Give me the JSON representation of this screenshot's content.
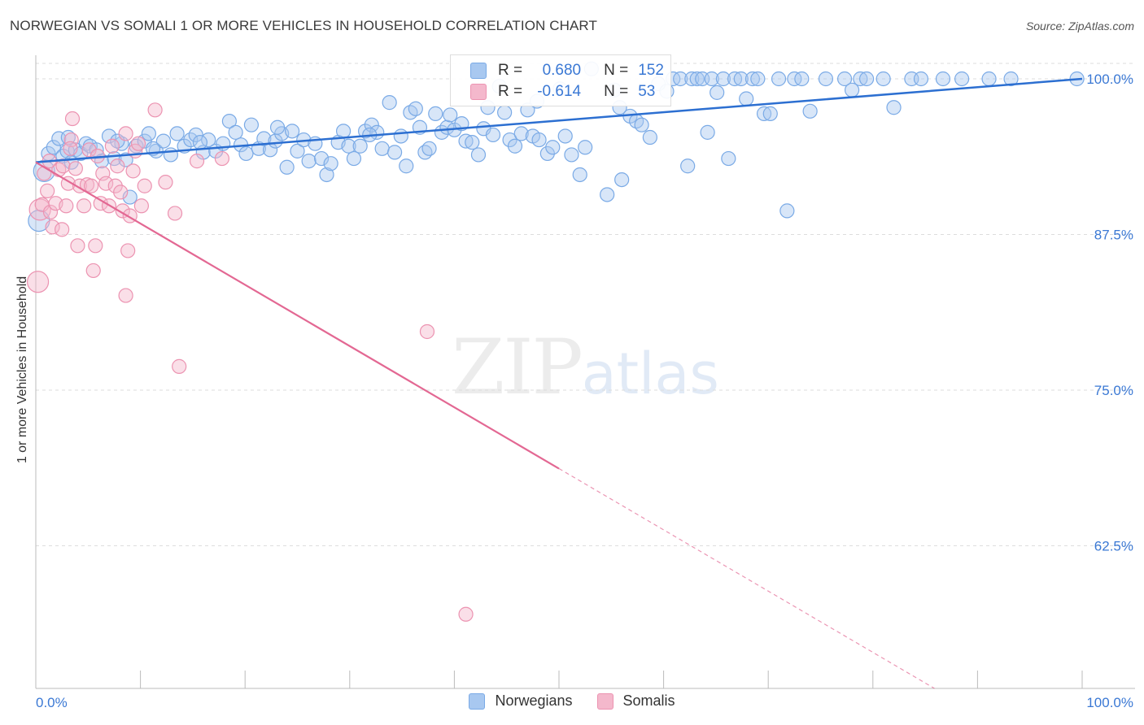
{
  "header": {
    "title": "NORWEGIAN VS SOMALI 1 OR MORE VEHICLES IN HOUSEHOLD CORRELATION CHART",
    "source": "Source: ZipAtlas.com"
  },
  "watermark": {
    "zip": "ZIP",
    "atlas": "atlas"
  },
  "legend_top": {
    "rows": [
      {
        "r_key": "R =",
        "r_val": "0.680",
        "n_key": "N =",
        "n_val": "152",
        "color": "#a8c8f0"
      },
      {
        "r_key": "R =",
        "r_val": "-0.614",
        "n_key": "N =",
        "n_val": "53",
        "color": "#f4b8cc"
      }
    ]
  },
  "legend_bottom": {
    "norwegians": "Norwegians",
    "somalis": "Somalis"
  },
  "colors": {
    "blue_fill": "#a8c8f0",
    "blue_stroke": "#7aaae6",
    "blue_line": "#2c6fd1",
    "pink_fill": "#f4b8cc",
    "pink_stroke": "#ec93b1",
    "pink_line": "#e36893",
    "tick_label": "#3a78d4",
    "grid": "#dddddd"
  },
  "chart_data": {
    "type": "scatter",
    "title": "NORWEGIAN VS SOMALI 1 OR MORE VEHICLES IN HOUSEHOLD CORRELATION CHART",
    "xlabel": "",
    "ylabel": "1 or more Vehicles in Household",
    "xlim": [
      0,
      100
    ],
    "ylim": [
      50.5,
      101.5
    ],
    "x_tick_labels": [
      "0.0%",
      "100.0%"
    ],
    "y_ticks": [
      62.5,
      75.0,
      87.5,
      100.0
    ],
    "y_tick_labels": [
      "62.5%",
      "75.0%",
      "87.5%",
      "100.0%"
    ],
    "grid": "horizontal dashed",
    "legend_position": "top-center",
    "series": [
      {
        "name": "Norwegians",
        "r": 0.68,
        "n": 152,
        "trend": {
          "x": [
            0,
            100
          ],
          "y": [
            93.3,
            100.0
          ],
          "dashed_from_x": null
        },
        "points": [
          [
            0.3,
            88.6
          ],
          [
            0.8,
            92.6
          ],
          [
            1.2,
            94.0
          ],
          [
            1.7,
            94.5
          ],
          [
            2.2,
            95.2
          ],
          [
            2.6,
            93.8
          ],
          [
            3.0,
            94.2
          ],
          [
            3.4,
            93.3
          ],
          [
            3.8,
            94.3
          ],
          [
            4.3,
            94.0
          ],
          [
            4.8,
            94.8
          ],
          [
            5.2,
            94.6
          ],
          [
            5.8,
            94.3
          ],
          [
            6.3,
            93.4
          ],
          [
            7.0,
            95.4
          ],
          [
            7.5,
            93.6
          ],
          [
            8.2,
            94.8
          ],
          [
            8.6,
            93.5
          ],
          [
            9.0,
            90.5
          ],
          [
            9.6,
            94.6
          ],
          [
            10.4,
            95.0
          ],
          [
            10.8,
            95.6
          ],
          [
            11.5,
            94.2
          ],
          [
            12.2,
            95.0
          ],
          [
            12.9,
            93.9
          ],
          [
            13.5,
            95.6
          ],
          [
            14.2,
            94.6
          ],
          [
            14.8,
            95.1
          ],
          [
            15.3,
            95.5
          ],
          [
            16.0,
            94.1
          ],
          [
            16.5,
            95.1
          ],
          [
            17.2,
            94.2
          ],
          [
            17.9,
            94.8
          ],
          [
            18.5,
            96.6
          ],
          [
            19.1,
            95.7
          ],
          [
            19.6,
            94.7
          ],
          [
            20.1,
            94.0
          ],
          [
            20.6,
            96.3
          ],
          [
            21.3,
            94.4
          ],
          [
            21.8,
            95.2
          ],
          [
            22.4,
            94.3
          ],
          [
            22.9,
            95.0
          ],
          [
            23.5,
            95.6
          ],
          [
            24.0,
            92.9
          ],
          [
            24.5,
            95.8
          ],
          [
            25.0,
            94.2
          ],
          [
            25.6,
            95.1
          ],
          [
            26.1,
            93.4
          ],
          [
            26.7,
            94.8
          ],
          [
            27.3,
            93.6
          ],
          [
            27.8,
            92.3
          ],
          [
            28.2,
            93.2
          ],
          [
            28.9,
            94.9
          ],
          [
            29.4,
            95.8
          ],
          [
            29.9,
            94.6
          ],
          [
            30.4,
            93.6
          ],
          [
            31.0,
            94.6
          ],
          [
            31.5,
            95.8
          ],
          [
            32.1,
            96.3
          ],
          [
            32.6,
            95.7
          ],
          [
            33.1,
            94.4
          ],
          [
            33.8,
            98.1
          ],
          [
            34.3,
            94.1
          ],
          [
            34.9,
            95.4
          ],
          [
            35.4,
            93.0
          ],
          [
            35.8,
            97.3
          ],
          [
            36.3,
            97.6
          ],
          [
            36.7,
            96.1
          ],
          [
            37.2,
            94.1
          ],
          [
            37.6,
            94.4
          ],
          [
            38.2,
            97.2
          ],
          [
            38.8,
            95.7
          ],
          [
            39.3,
            96.1
          ],
          [
            40.0,
            95.9
          ],
          [
            40.7,
            96.4
          ],
          [
            41.1,
            95.0
          ],
          [
            41.7,
            94.9
          ],
          [
            42.3,
            93.9
          ],
          [
            42.8,
            96.0
          ],
          [
            43.2,
            97.7
          ],
          [
            43.7,
            95.5
          ],
          [
            44.3,
            99.4
          ],
          [
            44.8,
            97.3
          ],
          [
            45.3,
            95.1
          ],
          [
            45.8,
            94.6
          ],
          [
            46.4,
            95.6
          ],
          [
            47.0,
            97.5
          ],
          [
            47.5,
            95.4
          ],
          [
            48.1,
            95.1
          ],
          [
            48.9,
            94.0
          ],
          [
            49.4,
            94.5
          ],
          [
            50.1,
            99.2
          ],
          [
            50.6,
            95.4
          ],
          [
            51.2,
            93.9
          ],
          [
            52.0,
            92.3
          ],
          [
            52.5,
            94.5
          ],
          [
            53.1,
            100.8
          ],
          [
            54.6,
            90.7
          ],
          [
            55.3,
            99.1
          ],
          [
            56.0,
            91.9
          ],
          [
            56.8,
            97.0
          ],
          [
            57.4,
            96.6
          ],
          [
            57.9,
            96.3
          ],
          [
            58.7,
            95.3
          ],
          [
            59.5,
            99.6
          ],
          [
            60.3,
            99.0
          ],
          [
            60.9,
            100.0
          ],
          [
            61.6,
            100.0
          ],
          [
            62.3,
            93.0
          ],
          [
            62.7,
            100.0
          ],
          [
            63.2,
            100.0
          ],
          [
            63.7,
            100.0
          ],
          [
            64.2,
            95.7
          ],
          [
            64.6,
            100.0
          ],
          [
            65.1,
            98.9
          ],
          [
            65.7,
            100.0
          ],
          [
            66.2,
            93.6
          ],
          [
            66.8,
            100.0
          ],
          [
            67.4,
            100.0
          ],
          [
            67.9,
            98.4
          ],
          [
            68.5,
            100.0
          ],
          [
            69.0,
            100.0
          ],
          [
            69.6,
            97.2
          ],
          [
            70.2,
            97.2
          ],
          [
            71.0,
            100.0
          ],
          [
            71.8,
            89.4
          ],
          [
            72.5,
            100.0
          ],
          [
            73.2,
            100.0
          ],
          [
            74.0,
            97.4
          ],
          [
            75.5,
            100.0
          ],
          [
            77.3,
            100.0
          ],
          [
            78.0,
            99.1
          ],
          [
            78.8,
            100.0
          ],
          [
            79.4,
            100.0
          ],
          [
            81.0,
            100.0
          ],
          [
            82.0,
            97.7
          ],
          [
            83.7,
            100.0
          ],
          [
            84.6,
            100.0
          ],
          [
            86.7,
            100.0
          ],
          [
            88.5,
            100.0
          ],
          [
            91.1,
            100.0
          ],
          [
            93.2,
            100.0
          ],
          [
            99.5,
            100.0
          ],
          [
            55.8,
            97.7
          ],
          [
            47.9,
            98.2
          ],
          [
            39.6,
            97.1
          ],
          [
            31.9,
            95.5
          ],
          [
            23.1,
            96.1
          ],
          [
            15.7,
            94.9
          ],
          [
            7.8,
            95.0
          ],
          [
            3.1,
            95.3
          ],
          [
            11.2,
            94.4
          ]
        ]
      },
      {
        "name": "Somalis",
        "r": -0.614,
        "n": 53,
        "trend": {
          "x": [
            0,
            50,
            100
          ],
          "y": [
            93.3,
            68.7,
            44.1
          ],
          "dashed_from_x": 50
        },
        "points": [
          [
            0.2,
            83.7
          ],
          [
            0.4,
            89.5
          ],
          [
            0.6,
            89.9
          ],
          [
            0.8,
            92.4
          ],
          [
            1.1,
            91.0
          ],
          [
            1.4,
            89.3
          ],
          [
            1.6,
            88.1
          ],
          [
            1.9,
            90.0
          ],
          [
            2.2,
            92.7
          ],
          [
            2.6,
            93.0
          ],
          [
            2.9,
            89.8
          ],
          [
            3.1,
            91.6
          ],
          [
            3.4,
            95.1
          ],
          [
            3.5,
            96.8
          ],
          [
            3.8,
            92.8
          ],
          [
            4.0,
            86.6
          ],
          [
            4.2,
            91.4
          ],
          [
            4.6,
            89.8
          ],
          [
            4.9,
            91.5
          ],
          [
            5.1,
            94.3
          ],
          [
            5.3,
            91.4
          ],
          [
            5.5,
            84.6
          ],
          [
            5.7,
            86.6
          ],
          [
            5.9,
            93.8
          ],
          [
            6.2,
            90.0
          ],
          [
            6.4,
            92.4
          ],
          [
            6.7,
            91.6
          ],
          [
            7.0,
            89.8
          ],
          [
            7.3,
            94.6
          ],
          [
            7.6,
            91.4
          ],
          [
            7.8,
            93.0
          ],
          [
            8.1,
            90.9
          ],
          [
            8.3,
            89.4
          ],
          [
            8.6,
            82.6
          ],
          [
            8.8,
            86.2
          ],
          [
            9.0,
            89.0
          ],
          [
            9.3,
            92.6
          ],
          [
            9.5,
            94.2
          ],
          [
            9.8,
            94.8
          ],
          [
            10.1,
            89.8
          ],
          [
            10.4,
            91.4
          ],
          [
            11.4,
            97.5
          ],
          [
            12.4,
            91.7
          ],
          [
            13.3,
            89.2
          ],
          [
            13.7,
            76.9
          ],
          [
            15.4,
            93.4
          ],
          [
            17.8,
            93.6
          ],
          [
            37.4,
            79.7
          ],
          [
            41.1,
            57.0
          ],
          [
            2.5,
            87.9
          ],
          [
            8.6,
            95.6
          ],
          [
            3.3,
            94.4
          ],
          [
            1.3,
            93.4
          ]
        ]
      }
    ]
  }
}
